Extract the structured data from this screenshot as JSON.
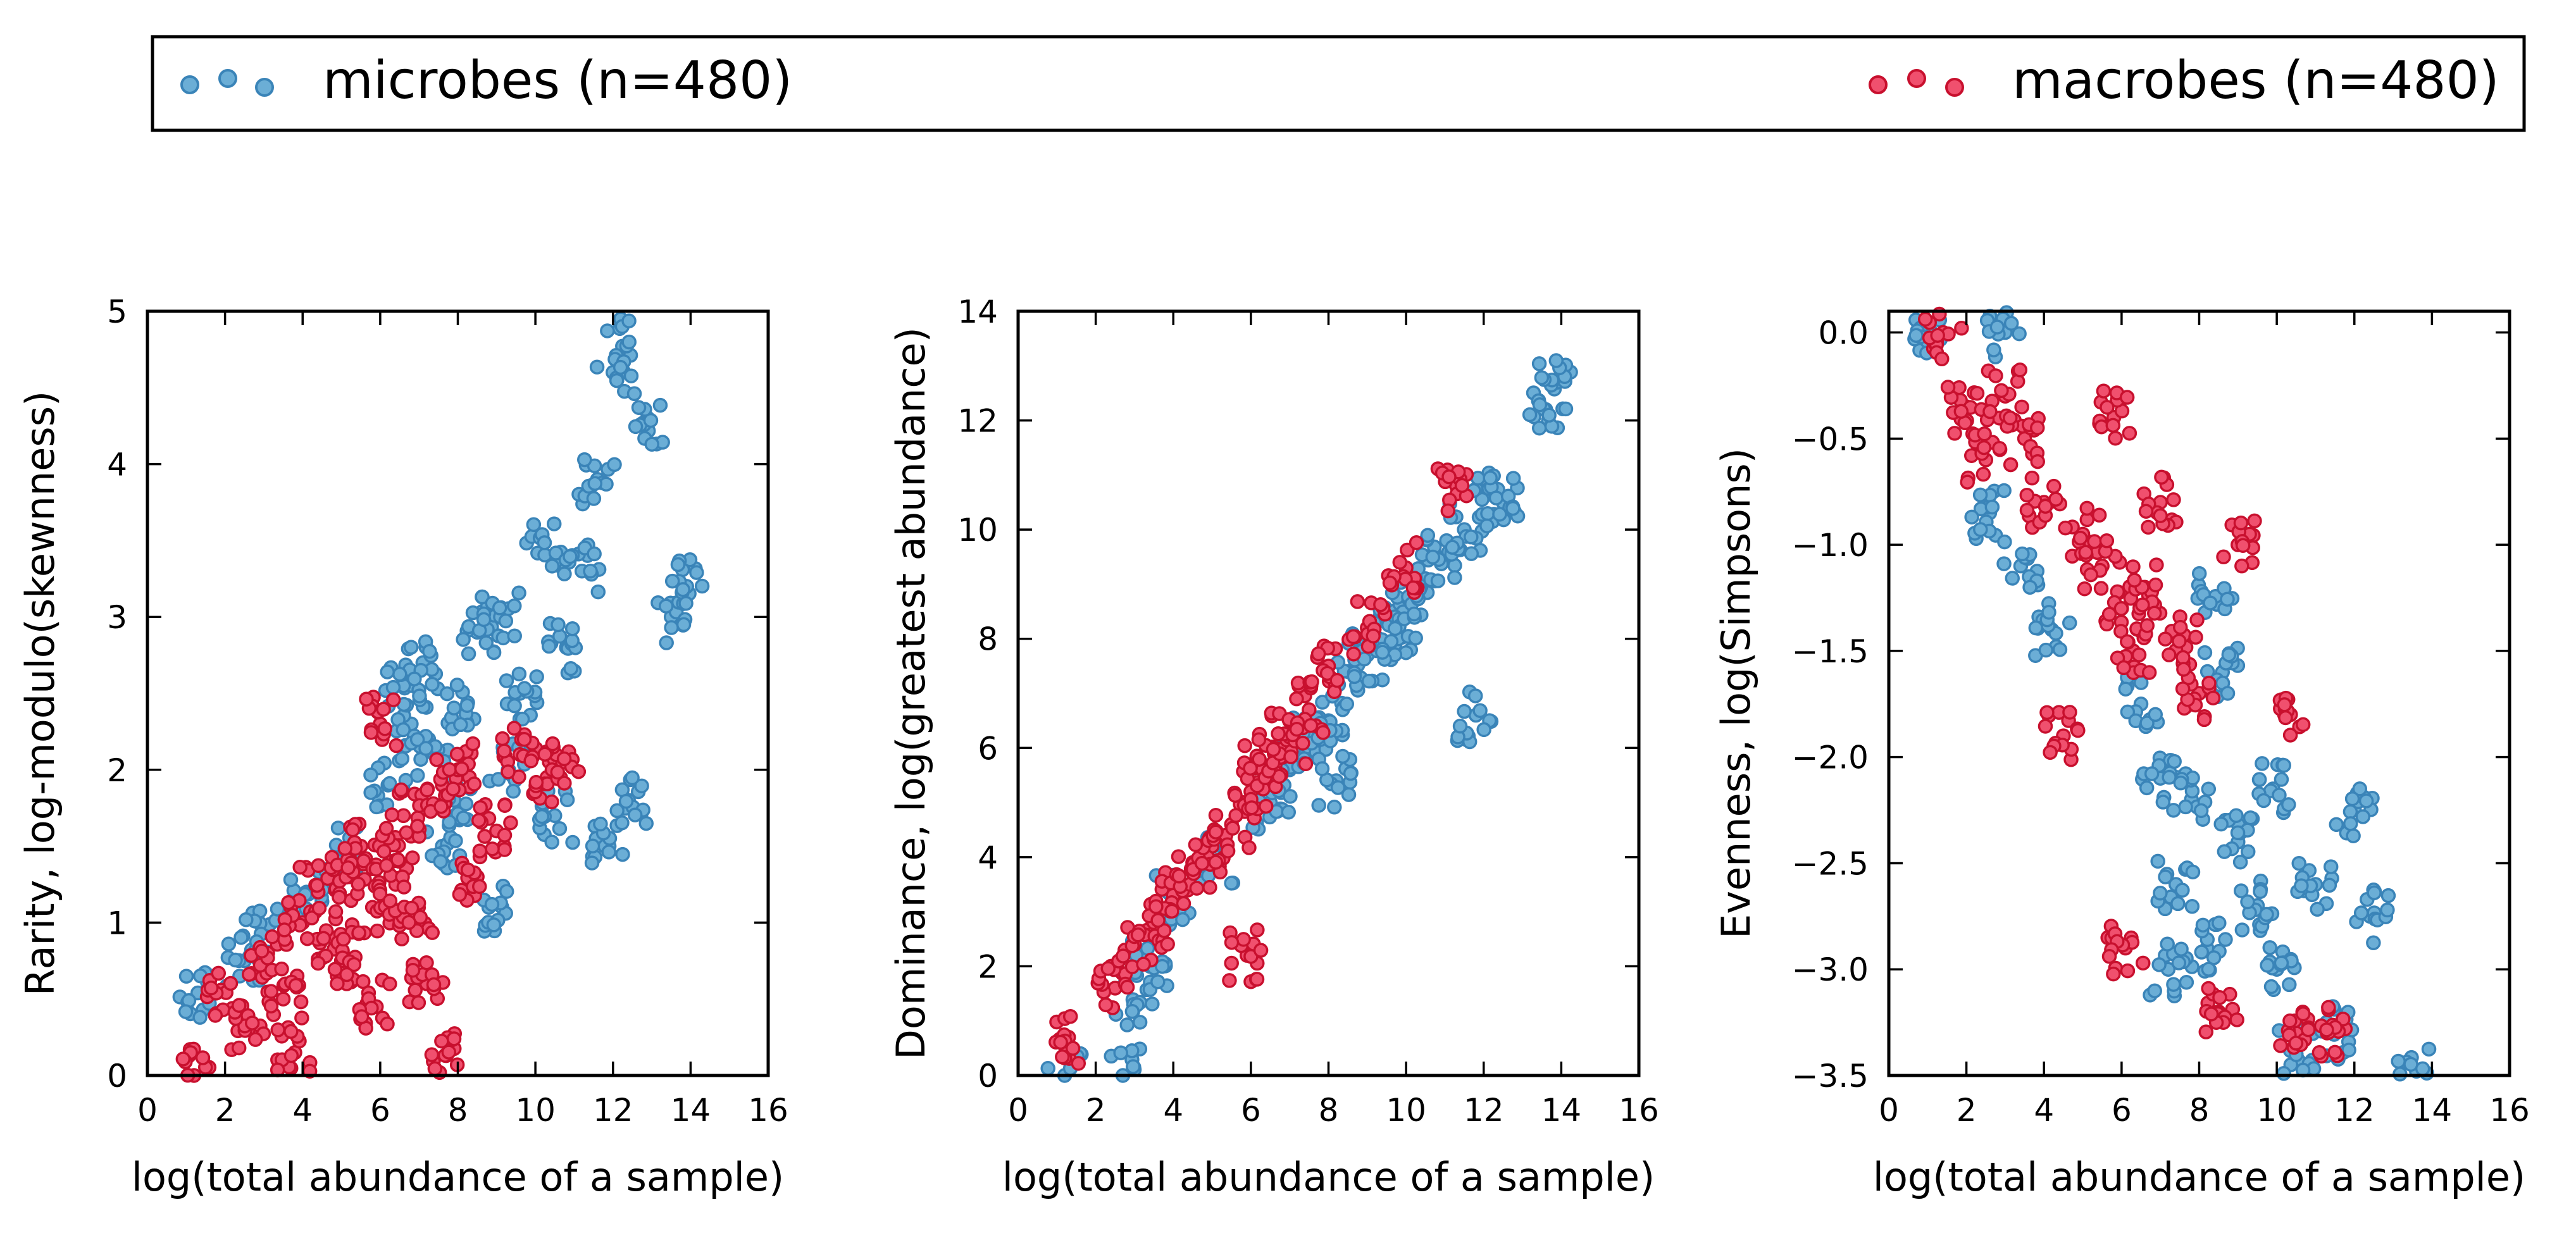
{
  "legend": {
    "microbes_label": "microbes (n=480)",
    "macrobes_label": "macrobes (n=480)"
  },
  "colors": {
    "microbes": "#6baed6",
    "microbes_edge": "#3a84b8",
    "macrobes": "#f0506e",
    "macrobes_edge": "#c8102e"
  },
  "chart_data": [
    {
      "type": "scatter",
      "xlabel": "log(total abundance of a sample)",
      "ylabel": "Rarity, log-modulo(skewnness)",
      "xlim": [
        0,
        16
      ],
      "ylim": [
        0,
        5
      ],
      "xticks": [
        0,
        2,
        4,
        6,
        8,
        10,
        12,
        14,
        16
      ],
      "yticks": [
        0,
        1,
        2,
        3,
        4,
        5
      ],
      "ytick_labels": [
        "0",
        "1",
        "2",
        "3",
        "4",
        "5"
      ],
      "series": [
        {
          "name": "microbes (n=480)",
          "x": [
            1.3,
            2.5,
            3.0,
            4.1,
            5.0,
            6.2,
            6.8,
            7.1,
            7.4,
            7.9,
            8.2,
            8.5,
            9.1,
            9.6,
            10.2,
            10.8,
            11.2,
            11.6,
            12.0,
            12.2,
            12.4,
            12.9,
            13.5,
            13.9,
            7.6,
            8.8,
            10.5,
            11.9,
            6.6,
            9.3
          ],
          "y": [
            0.54,
            0.75,
            0.95,
            1.2,
            1.45,
            1.9,
            2.3,
            2.7,
            2.1,
            1.8,
            2.4,
            2.9,
            3.0,
            2.5,
            3.5,
            2.8,
            3.3,
            3.9,
            4.6,
            4.95,
            1.8,
            4.3,
            3.0,
            3.2,
            1.5,
            1.1,
            1.7,
            1.5,
            2.55,
            2.0
          ]
        },
        {
          "name": "macrobes (n=480)",
          "x": [
            1.2,
            2.0,
            2.6,
            3.1,
            3.5,
            4.0,
            4.4,
            4.8,
            5.2,
            5.5,
            5.8,
            6.0,
            6.3,
            6.6,
            6.9,
            7.2,
            7.6,
            8.0,
            8.5,
            9.0,
            9.6,
            10.3,
            10.7,
            5.0,
            5.9,
            6.4,
            3.8,
            7.7
          ],
          "y": [
            0.0,
            0.55,
            0.3,
            0.8,
            0.5,
            1.0,
            1.2,
            0.9,
            1.3,
            1.5,
            1.1,
            2.3,
            1.4,
            1.7,
            1.0,
            0.6,
            1.9,
            2.0,
            1.3,
            1.6,
            2.1,
            1.95,
            2.05,
            0.75,
            0.45,
            1.25,
            0.15,
            0.13
          ]
        }
      ]
    },
    {
      "type": "scatter",
      "xlabel": "log(total abundance of a sample)",
      "ylabel": "Dominance, log(greatest abundance)",
      "xlim": [
        0,
        16
      ],
      "ylim": [
        0,
        14
      ],
      "xticks": [
        0,
        2,
        4,
        6,
        8,
        10,
        12,
        14,
        16
      ],
      "yticks": [
        0,
        2,
        4,
        6,
        8,
        10,
        12,
        14
      ],
      "ytick_labels": [
        "0",
        "2",
        "4",
        "6",
        "8",
        "10",
        "12",
        "14"
      ],
      "series": [
        {
          "name": "microbes (n=480)",
          "x": [
            1.2,
            2.7,
            3.0,
            3.4,
            4.0,
            5.1,
            6.5,
            7.0,
            7.5,
            8.0,
            8.5,
            9.0,
            9.5,
            10.0,
            10.5,
            11.0,
            11.5,
            12.0,
            12.5,
            13.6,
            13.9,
            11.8,
            9.8,
            8.2
          ],
          "y": [
            0.0,
            0.0,
            1.3,
            2.0,
            3.2,
            4.0,
            5.0,
            5.6,
            6.2,
            6.5,
            7.4,
            7.7,
            8.3,
            8.6,
            9.1,
            9.5,
            10.0,
            10.6,
            10.5,
            12.2,
            12.7,
            6.6,
            8.0,
            5.4
          ]
        },
        {
          "name": "macrobes (n=480)",
          "x": [
            2.5,
            3.0,
            3.5,
            4.0,
            4.5,
            5.0,
            5.5,
            6.0,
            6.3,
            6.6,
            7.0,
            7.5,
            8.0,
            9.0,
            10.0,
            11.3,
            1.3,
            5.9
          ],
          "y": [
            1.6,
            2.4,
            2.8,
            3.3,
            3.9,
            4.2,
            4.6,
            5.2,
            5.6,
            5.9,
            6.2,
            6.7,
            7.5,
            8.2,
            9.3,
            10.8,
            0.7,
            2.2
          ]
        }
      ]
    },
    {
      "type": "scatter",
      "xlabel": "log(total abundance of a sample)",
      "ylabel": "Evenness, log(Simpsons)",
      "xlim": [
        0,
        16
      ],
      "ylim": [
        -3.5,
        0.1
      ],
      "xticks": [
        0,
        2,
        4,
        6,
        8,
        10,
        12,
        14,
        16
      ],
      "yticks": [
        0.0,
        -0.5,
        -1.0,
        -1.5,
        -2.0,
        -2.5,
        -3.0,
        -3.5
      ],
      "ytick_labels": [
        "0.0",
        "−0.5",
        "−1.0",
        "−1.5",
        "−2.0",
        "−2.5",
        "−3.0",
        "−3.5"
      ],
      "series": [
        {
          "name": "microbes (n=480)",
          "x": [
            1.1,
            2.6,
            3.0,
            3.4,
            4.2,
            6.5,
            7.0,
            7.4,
            7.8,
            8.2,
            8.6,
            9.0,
            9.5,
            10.0,
            10.5,
            11.0,
            11.5,
            12.0,
            12.4,
            13.6,
            8.4,
            9.9,
            7.2
          ],
          "y": [
            0.0,
            -0.85,
            0.0,
            -1.1,
            -1.4,
            -1.75,
            -2.1,
            -2.6,
            -2.2,
            -2.9,
            -1.6,
            -2.4,
            -2.7,
            -3.0,
            -3.4,
            -2.6,
            -3.3,
            -2.25,
            -2.75,
            -3.48,
            -1.25,
            -2.15,
            -3.0
          ]
        },
        {
          "name": "macrobes (n=480)",
          "x": [
            1.4,
            2.0,
            2.5,
            3.0,
            3.5,
            4.0,
            4.5,
            5.0,
            5.5,
            6.0,
            6.3,
            6.6,
            7.0,
            7.5,
            8.0,
            8.5,
            9.0,
            10.2,
            10.5,
            11.3,
            5.8,
            6.1
          ],
          "y": [
            0.0,
            -0.35,
            -0.6,
            -0.3,
            -0.5,
            -0.8,
            -1.9,
            -0.95,
            -1.1,
            -1.3,
            -1.5,
            -1.2,
            -0.8,
            -1.45,
            -1.7,
            -3.2,
            -1.0,
            -1.8,
            -3.3,
            -3.3,
            -0.4,
            -2.9
          ]
        }
      ]
    }
  ]
}
